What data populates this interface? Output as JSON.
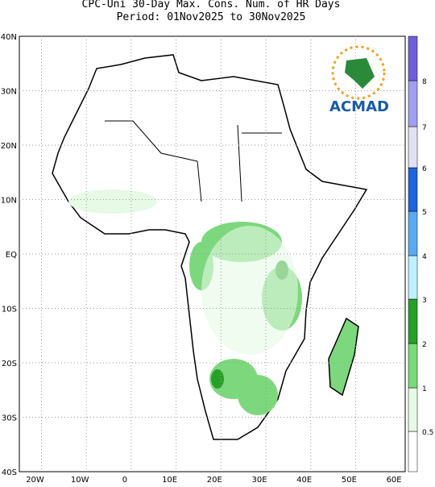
{
  "title_lines": [
    "CPC-Uni 30-Day Max. Cons. Num. of HR Days",
    "Period: 01Nov2025 to 30Nov2025"
  ],
  "lat_labels": [
    "40N",
    "30N",
    "20N",
    "10N",
    "EQ",
    "10S",
    "20S",
    "30S",
    "40S"
  ],
  "lon_labels": [
    "20W",
    "10W",
    "0",
    "10E",
    "20E",
    "30E",
    "40E",
    "50E",
    "60E"
  ],
  "colorbar_labels": [
    "0.5",
    "1",
    "2",
    "3",
    "4",
    "5",
    "6",
    "7",
    "8"
  ],
  "logo_text": "ACMAD"
}
